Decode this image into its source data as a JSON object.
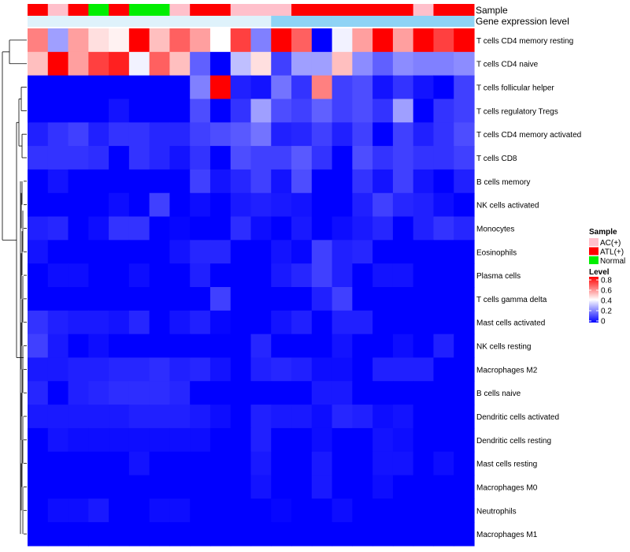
{
  "chart_data": {
    "type": "heatmap",
    "title": "",
    "annotation_tracks": {
      "sample": {
        "label": "Sample",
        "values": [
          "ATL(+)",
          "AC(+)",
          "ATL(+)",
          "Normal",
          "ATL(+)",
          "Normal",
          "Normal",
          "AC(+)",
          "ATL(+)",
          "ATL(+)",
          "AC(+)",
          "AC(+)",
          "AC(+)",
          "ATL(+)",
          "ATL(+)",
          "ATL(+)",
          "ATL(+)",
          "ATL(+)",
          "ATL(+)",
          "AC(+)",
          "ATL(+)",
          "ATL(+)"
        ]
      },
      "expression": {
        "label": "Gene expression level",
        "values": [
          "low",
          "low",
          "low",
          "low",
          "low",
          "low",
          "low",
          "low",
          "low",
          "low",
          "low",
          "low",
          "high",
          "high",
          "high",
          "high",
          "high",
          "high",
          "high",
          "high",
          "high",
          "high"
        ]
      }
    },
    "rows": [
      "T cells CD4 memory resting",
      "T cells CD4 naive",
      "T cells follicular helper",
      "T cells regulatory  Tregs",
      "T cells CD4 memory activated",
      "T cells CD8",
      "B cells memory",
      "NK cells activated",
      "Monocytes",
      "Eosinophils",
      "Plasma cells",
      "T cells gamma delta",
      "Mast cells activated",
      "NK cells resting",
      "Macrophages M2",
      "B cells naive",
      "Dendritic cells activated",
      "Dendritic cells resting",
      "Mast cells resting",
      "Macrophages M0",
      "Neutrophils",
      "Macrophages M1"
    ],
    "values": [
      [
        0.6,
        0.25,
        0.55,
        0.45,
        0.42,
        0.8,
        0.5,
        0.65,
        0.55,
        0.4,
        0.7,
        0.2,
        0.8,
        0.65,
        0.0,
        0.38,
        0.55,
        0.8,
        0.55,
        0.8,
        0.7,
        0.8
      ],
      [
        0.5,
        0.8,
        0.55,
        0.7,
        0.75,
        0.38,
        0.65,
        0.5,
        0.15,
        0.0,
        0.3,
        0.45,
        0.1,
        0.25,
        0.25,
        0.5,
        0.22,
        0.15,
        0.22,
        0.2,
        0.2,
        0.22
      ],
      [
        0.0,
        0.0,
        0.0,
        0.0,
        0.0,
        0.0,
        0.0,
        0.0,
        0.2,
        0.8,
        0.05,
        0.03,
        0.18,
        0.08,
        0.6,
        0.1,
        0.12,
        0.03,
        0.08,
        0.03,
        0.0,
        0.1
      ],
      [
        0.0,
        0.0,
        0.0,
        0.0,
        0.03,
        0.0,
        0.0,
        0.0,
        0.12,
        0.0,
        0.08,
        0.25,
        0.12,
        0.1,
        0.15,
        0.1,
        0.12,
        0.08,
        0.25,
        0.0,
        0.08,
        0.1
      ],
      [
        0.05,
        0.08,
        0.1,
        0.05,
        0.08,
        0.08,
        0.06,
        0.06,
        0.1,
        0.12,
        0.14,
        0.18,
        0.05,
        0.06,
        0.1,
        0.05,
        0.1,
        0.0,
        0.1,
        0.05,
        0.08,
        0.12
      ],
      [
        0.08,
        0.08,
        0.08,
        0.07,
        0.0,
        0.08,
        0.06,
        0.03,
        0.08,
        0.0,
        0.12,
        0.1,
        0.1,
        0.14,
        0.08,
        0.0,
        0.12,
        0.08,
        0.1,
        0.08,
        0.08,
        0.1
      ],
      [
        0.0,
        0.03,
        0.0,
        0.0,
        0.0,
        0.0,
        0.0,
        0.0,
        0.1,
        0.03,
        0.06,
        0.1,
        0.03,
        0.12,
        0.0,
        0.0,
        0.08,
        0.03,
        0.1,
        0.03,
        0.0,
        0.05
      ],
      [
        0.0,
        0.0,
        0.0,
        0.0,
        0.02,
        0.0,
        0.1,
        0.0,
        0.02,
        0.0,
        0.04,
        0.05,
        0.04,
        0.03,
        0.0,
        0.0,
        0.05,
        0.1,
        0.06,
        0.05,
        0.02,
        0.0
      ],
      [
        0.05,
        0.06,
        0.0,
        0.02,
        0.08,
        0.08,
        0.0,
        0.01,
        0.0,
        0.0,
        0.07,
        0.02,
        0.0,
        0.04,
        0.0,
        0.02,
        0.04,
        0.06,
        0.0,
        0.05,
        0.08,
        0.06
      ],
      [
        0.03,
        0.0,
        0.0,
        0.0,
        0.0,
        0.0,
        0.0,
        0.03,
        0.06,
        0.06,
        0.0,
        0.0,
        0.03,
        0.01,
        0.1,
        0.05,
        0.06,
        0.0,
        0.0,
        0.0,
        0.0,
        0.0
      ],
      [
        0.0,
        0.02,
        0.02,
        0.0,
        0.0,
        0.02,
        0.0,
        0.0,
        0.05,
        0.0,
        0.0,
        0.0,
        0.04,
        0.06,
        0.1,
        0.05,
        0.0,
        0.03,
        0.03,
        0.0,
        0.0,
        0.0
      ],
      [
        0.0,
        0.0,
        0.0,
        0.0,
        0.0,
        0.0,
        0.0,
        0.0,
        0.0,
        0.1,
        0.0,
        0.0,
        0.0,
        0.0,
        0.05,
        0.1,
        0.0,
        0.0,
        0.0,
        0.0,
        0.0,
        0.0
      ],
      [
        0.08,
        0.05,
        0.04,
        0.04,
        0.03,
        0.06,
        0.0,
        0.03,
        0.05,
        0.01,
        0.0,
        0.0,
        0.03,
        0.05,
        0.0,
        0.05,
        0.05,
        0.0,
        0.0,
        0.0,
        0.0,
        0.0
      ],
      [
        0.1,
        0.04,
        0.0,
        0.02,
        0.0,
        0.0,
        0.0,
        0.0,
        0.0,
        0.0,
        0.0,
        0.06,
        0.0,
        0.0,
        0.0,
        0.03,
        0.0,
        0.0,
        0.02,
        0.0,
        0.05,
        0.0
      ],
      [
        0.04,
        0.04,
        0.05,
        0.05,
        0.06,
        0.06,
        0.07,
        0.05,
        0.06,
        0.03,
        0.0,
        0.05,
        0.06,
        0.05,
        0.02,
        0.02,
        0.0,
        0.05,
        0.05,
        0.05,
        0.0,
        0.0
      ],
      [
        0.06,
        0.0,
        0.05,
        0.06,
        0.07,
        0.07,
        0.07,
        0.06,
        0.0,
        0.0,
        0.0,
        0.0,
        0.0,
        0.0,
        0.04,
        0.04,
        0.0,
        0.0,
        0.0,
        0.0,
        0.0,
        0.0
      ],
      [
        0.04,
        0.04,
        0.04,
        0.04,
        0.04,
        0.05,
        0.05,
        0.05,
        0.04,
        0.02,
        0.0,
        0.05,
        0.04,
        0.04,
        0.02,
        0.06,
        0.05,
        0.02,
        0.03,
        0.0,
        0.0,
        0.0
      ],
      [
        0.0,
        0.03,
        0.02,
        0.02,
        0.02,
        0.02,
        0.02,
        0.02,
        0.02,
        0.0,
        0.0,
        0.05,
        0.0,
        0.0,
        0.02,
        0.0,
        0.0,
        0.03,
        0.02,
        0.0,
        0.0,
        0.0
      ],
      [
        0.0,
        0.0,
        0.0,
        0.0,
        0.0,
        0.03,
        0.0,
        0.0,
        0.0,
        0.0,
        0.0,
        0.04,
        0.0,
        0.0,
        0.04,
        0.0,
        0.0,
        0.03,
        0.03,
        0.0,
        0.02,
        0.0
      ],
      [
        0.0,
        0.0,
        0.0,
        0.0,
        0.0,
        0.0,
        0.0,
        0.0,
        0.0,
        0.0,
        0.0,
        0.03,
        0.0,
        0.0,
        0.04,
        0.0,
        0.0,
        0.02,
        0.0,
        0.0,
        0.0,
        0.0
      ],
      [
        0.0,
        0.02,
        0.02,
        0.04,
        0.0,
        0.0,
        0.02,
        0.02,
        0.0,
        0.0,
        0.0,
        0.0,
        0.01,
        0.0,
        0.0,
        0.02,
        0.0,
        0.0,
        0.0,
        0.0,
        0.0,
        0.0
      ],
      [
        0.0,
        0.0,
        0.0,
        0.0,
        0.0,
        0.0,
        0.0,
        0.0,
        0.0,
        0.0,
        0.0,
        0.0,
        0.0,
        0.0,
        0.0,
        0.0,
        0.0,
        0.0,
        0.0,
        0.0,
        0.0,
        0.0
      ]
    ],
    "legend": {
      "sample_title": "Sample",
      "sample_entries": [
        {
          "label": "AC(+)",
          "color": "#ffc0cb"
        },
        {
          "label": "ATL(+)",
          "color": "#ff0000"
        },
        {
          "label": "Normal",
          "color": "#00ee00"
        }
      ],
      "level_title": "Level",
      "level_ticks": [
        "0.8",
        "0.6",
        "0.4",
        "0.2",
        "0"
      ],
      "level_range": [
        0,
        0.8
      ]
    },
    "colors": {
      "low": "#0000ff",
      "mid": "#ffffff",
      "high": "#ff0000",
      "expr_low": "#dff2fb",
      "expr_high": "#8fd3f5"
    },
    "dendrogram": "row clustering tree"
  }
}
